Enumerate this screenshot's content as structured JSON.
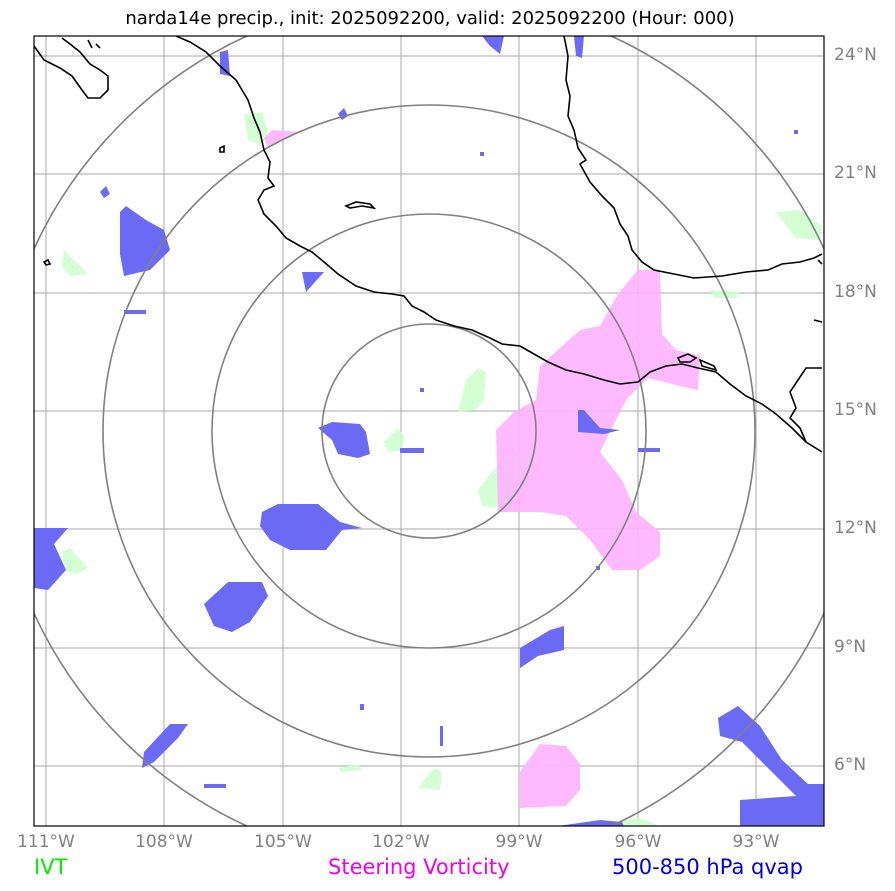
{
  "title": "narda14e precip., init: 2025092200, valid: 2025092200 (Hour: 000)",
  "lon_labels": [
    "111°W",
    "108°W",
    "105°W",
    "102°W",
    "99°W",
    "96°W",
    "93°W"
  ],
  "lat_labels": [
    "24°N",
    "21°N",
    "18°N",
    "15°N",
    "12°N",
    "9°N",
    "6°N"
  ],
  "legend": {
    "ivt": {
      "label": "IVT",
      "color": "#00ee00"
    },
    "steering": {
      "label": "Steering Vorticity",
      "color": "#ee00ee"
    },
    "qvap": {
      "label": "500-850 hPa qvap",
      "color": "#0000dd"
    }
  },
  "map": {
    "extent_lon": [
      -111.3,
      -91.3
    ],
    "extent_lat": [
      4.5,
      24.5
    ],
    "gridlines": true,
    "range_rings_count": 4,
    "fill_colors": {
      "ivt": "#ccffcc",
      "steering": "#ffb3ff",
      "qvap": "#6a6af5"
    }
  }
}
